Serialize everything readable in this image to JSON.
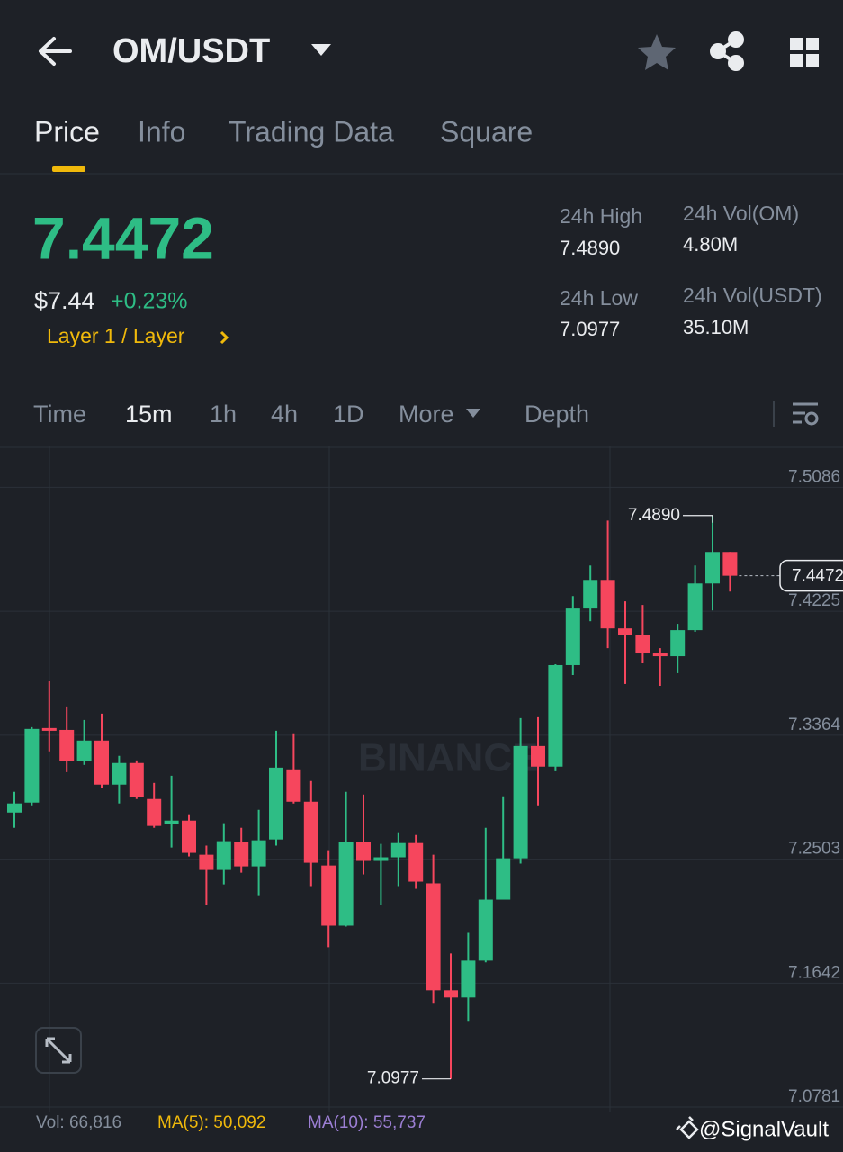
{
  "header": {
    "pair": "OM/USDT"
  },
  "tabs": [
    "Price",
    "Info",
    "Trading Data",
    "Square"
  ],
  "summary": {
    "price": "7.4472",
    "usd_price": "$7.44",
    "change": "+0.23%",
    "tag": "Layer 1 / Layer",
    "stats": [
      {
        "label": "24h High",
        "value": "7.4890"
      },
      {
        "label": "24h Vol(OM)",
        "value": "4.80M"
      },
      {
        "label": "24h Low",
        "value": "7.0977"
      },
      {
        "label": "24h Vol(USDT)",
        "value": "35.10M"
      }
    ]
  },
  "intervals": [
    "Time",
    "15m",
    "1h",
    "4h",
    "1D",
    "More",
    "Depth"
  ],
  "chart_data": {
    "type": "candlestick",
    "watermark": "BINANCE",
    "up_color": "#2ebd85",
    "down_color": "#f6465d",
    "open": [
      7.2827,
      7.2896,
      7.3414,
      7.3401,
      7.3183,
      7.3327,
      7.3021,
      7.3171,
      7.2921,
      7.2746,
      7.2771,
      7.2534,
      7.2428,
      7.2622,
      7.2453,
      7.264,
      7.3127,
      7.2902,
      7.2459,
      7.2041,
      7.2622,
      7.2491,
      7.2516,
      7.2615,
      7.2335,
      7.1592,
      7.1542,
      7.1798,
      7.2222,
      7.2509,
      7.3289,
      7.3146,
      7.3851,
      7.4244,
      7.4443,
      7.4106,
      7.4063,
      7.3932,
      7.3913,
      7.4094,
      7.4418,
      7.4637
    ],
    "high": [
      7.2971,
      7.342,
      7.3738,
      7.3564,
      7.347,
      7.3514,
      7.3221,
      7.3189,
      7.3033,
      7.3083,
      7.2815,
      7.2597,
      7.2753,
      7.2721,
      7.2846,
      7.3395,
      7.3377,
      7.3046,
      7.2565,
      7.2971,
      7.2952,
      7.2609,
      7.269,
      7.2671,
      7.2534,
      7.1848,
      7.1991,
      7.2721,
      7.294,
      7.3483,
      7.3489,
      7.3857,
      7.4331,
      7.4543,
      7.4855,
      7.4294,
      7.4269,
      7.3969,
      7.4138,
      7.4543,
      7.489,
      7.4637
    ],
    "low": [
      7.2721,
      7.2877,
      7.3252,
      7.3108,
      7.3158,
      7.2996,
      7.289,
      7.2921,
      7.2721,
      7.2584,
      7.2522,
      7.2185,
      7.2328,
      7.2409,
      7.2253,
      7.2597,
      7.289,
      7.2316,
      7.1892,
      7.2035,
      7.2397,
      7.2185,
      7.2316,
      7.2297,
      7.1505,
      7.0977,
      7.138,
      7.1786,
      7.2222,
      7.2472,
      7.2877,
      7.3114,
      7.3782,
      7.4156,
      7.3969,
      7.372,
      7.3863,
      7.3707,
      7.3795,
      7.4082,
      7.4231,
      7.4362
    ],
    "close": [
      7.289,
      7.3408,
      7.3395,
      7.3183,
      7.3327,
      7.3021,
      7.3171,
      7.2934,
      7.2734,
      7.2771,
      7.2547,
      7.2428,
      7.2628,
      7.2453,
      7.2634,
      7.3139,
      7.2902,
      7.2478,
      7.2041,
      7.2622,
      7.2491,
      7.2516,
      7.2615,
      7.2347,
      7.1592,
      7.1542,
      7.1798,
      7.2222,
      7.2509,
      7.3289,
      7.3146,
      7.3851,
      7.4244,
      7.4443,
      7.4106,
      7.4063,
      7.3932,
      7.3913,
      7.4094,
      7.4418,
      7.4637,
      7.4472
    ],
    "ylim": [
      7.075,
      7.537
    ],
    "yticks": [
      7.5086,
      7.4225,
      7.3364,
      7.2503,
      7.1642,
      7.0781
    ],
    "grid": true,
    "high_marker": {
      "value": 7.489,
      "label": "7.4890"
    },
    "low_marker": {
      "value": 7.0977,
      "label": "7.0977"
    },
    "last_price": 7.4472,
    "indicators": [
      "Vol: 66,816",
      "MA(5): 50,092",
      "MA(10): 55,737"
    ]
  },
  "credit": "@SignalVault"
}
